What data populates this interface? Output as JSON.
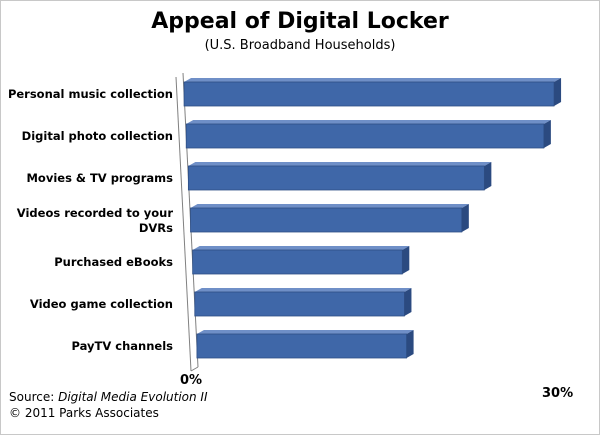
{
  "chart_data": {
    "type": "bar",
    "orientation": "horizontal",
    "title": "Appeal of Digital Locker",
    "subtitle": "(U.S. Broadband Households)",
    "categories": [
      "Personal music collection",
      "Digital photo collection",
      "Movies & TV programs",
      "Videos recorded to your DVRs",
      "Purchased  eBooks",
      "Video game collection",
      "PayTV channels"
    ],
    "values": [
      30,
      29,
      24,
      22,
      17,
      17,
      17
    ],
    "xlim": [
      0,
      30
    ],
    "x_ticks": [
      "0%",
      "30%"
    ],
    "unit": "%",
    "grid": false,
    "legend": "none",
    "bar_color": "#3f67a8"
  },
  "source": {
    "prefix": "Source: ",
    "name": "Digital Media Evolution II"
  },
  "copyright": "© 2011 Parks Associates"
}
